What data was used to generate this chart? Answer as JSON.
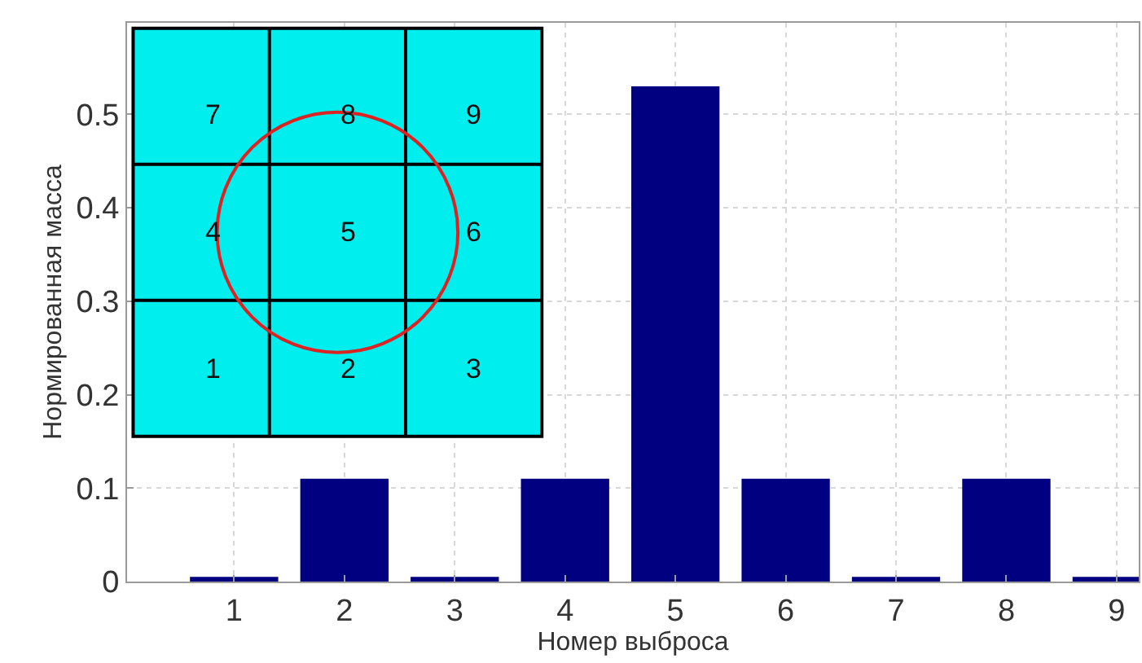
{
  "chart_data": {
    "type": "bar",
    "xlabel": "Номер выброса",
    "ylabel": "Нормированная масса",
    "x": [
      1,
      2,
      3,
      4,
      5,
      6,
      7,
      8,
      9
    ],
    "values": [
      0.005,
      0.11,
      0.005,
      0.11,
      0.53,
      0.11,
      0.005,
      0.11,
      0.005
    ],
    "color": "#000080",
    "xlim": [
      0.03,
      9.2
    ],
    "xticks": [
      1,
      2,
      3,
      4,
      5,
      6,
      7,
      8,
      9
    ],
    "ylim": [
      0,
      0.598
    ],
    "yticks": [
      0,
      0.1,
      0.2,
      0.3,
      0.4,
      0.5
    ],
    "grid": true,
    "annotations": [
      "7",
      "8",
      "9",
      "4",
      "5",
      "6",
      "1",
      "2",
      "3"
    ]
  }
}
